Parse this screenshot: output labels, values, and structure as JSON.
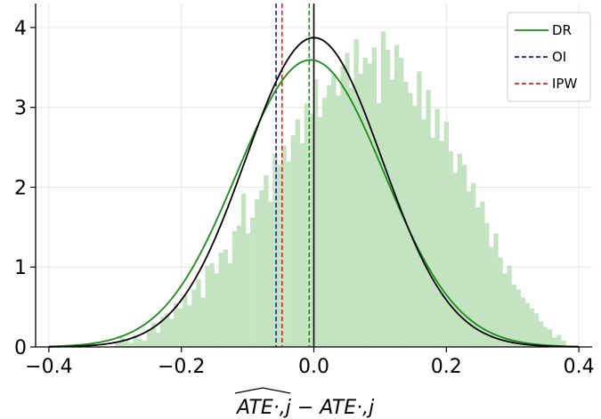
{
  "chart_data": {
    "type": "histogram",
    "xlim": [
      -0.42,
      0.42
    ],
    "ylim": [
      0,
      4.3
    ],
    "xticks": [
      -0.4,
      -0.2,
      0.0,
      0.2,
      0.4
    ],
    "xtick_labels": [
      "−0.4",
      "−0.2",
      "0.0",
      "0.2",
      "0.4"
    ],
    "yticks": [
      0,
      1,
      2,
      3,
      4
    ],
    "ytick_labels": [
      "0",
      "1",
      "2",
      "3",
      "4"
    ],
    "grid": true,
    "xlabel": "ATE·,j − ATE·,j",
    "histogram": {
      "color": "#c4e3c0",
      "bin_range": [
        -0.3,
        0.38
      ],
      "heights": [
        0.05,
        0.12,
        0.1,
        0.05,
        0.15,
        0.1,
        0.08,
        0.22,
        0.3,
        0.18,
        0.38,
        0.42,
        0.35,
        0.55,
        0.48,
        0.65,
        0.52,
        0.72,
        0.85,
        0.62,
        1.02,
        1.05,
        0.92,
        1.18,
        1.22,
        1.05,
        1.45,
        1.52,
        1.92,
        1.42,
        1.62,
        1.85,
        1.96,
        2.15,
        1.82,
        2.42,
        2.28,
        2.52,
        2.32,
        2.65,
        2.85,
        2.55,
        3.05,
        2.92,
        3.35,
        2.88,
        3.12,
        3.28,
        3.42,
        3.15,
        3.52,
        3.68,
        3.25,
        3.85,
        3.42,
        3.62,
        3.55,
        3.75,
        3.05,
        3.95,
        3.72,
        3.35,
        3.78,
        3.62,
        3.32,
        3.18,
        3.02,
        3.45,
        2.85,
        3.22,
        2.62,
        2.98,
        2.58,
        2.82,
        2.45,
        2.18,
        2.42,
        2.28,
        1.95,
        2.05,
        1.75,
        1.82,
        1.55,
        1.25,
        1.42,
        1.12,
        0.92,
        1.02,
        0.78,
        0.72,
        0.62,
        0.55,
        0.48,
        0.42,
        0.32,
        0.25,
        0.22,
        0.12,
        0.15,
        0.08
      ]
    },
    "series": [
      {
        "name": "DR",
        "type": "density",
        "color": "#1a8c1a",
        "mean": -0.005,
        "sd": 0.111
      },
      {
        "name": "",
        "type": "density",
        "color": "#000000",
        "mean": 0.0,
        "sd": 0.103
      }
    ],
    "vlines": [
      {
        "name": "OI",
        "x": -0.057,
        "color": "#1a1aa6",
        "style": "dashed"
      },
      {
        "name": "IPW",
        "x": -0.048,
        "color": "#e61e1e",
        "style": "dashed"
      },
      {
        "name": "",
        "x": -0.007,
        "color": "#1a8c1a",
        "style": "dashed"
      },
      {
        "name": "",
        "x": 0.0,
        "color": "#000000",
        "style": "solid"
      }
    ],
    "legend": {
      "position": "top-right",
      "items": [
        {
          "label": "DR",
          "color": "#1a8c1a",
          "style": "solid"
        },
        {
          "label": "OI",
          "color": "#1a1aa6",
          "style": "dashed"
        },
        {
          "label": "IPW",
          "color": "#e61e1e",
          "style": "dashed"
        }
      ]
    }
  }
}
